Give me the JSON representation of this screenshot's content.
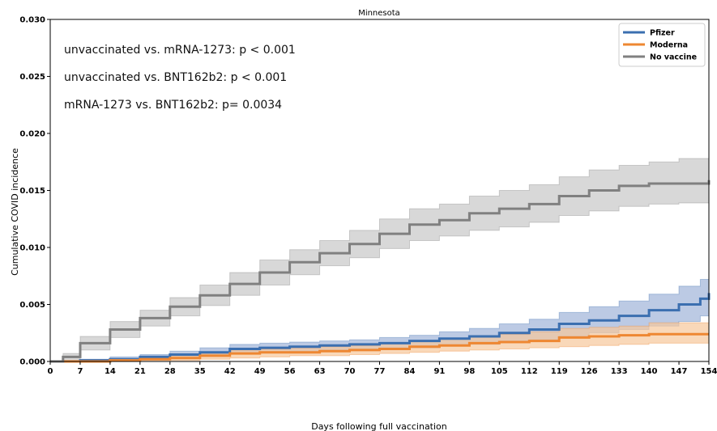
{
  "chart_data": {
    "type": "line",
    "title": "Minnesota",
    "xlabel": "Days following full vaccination",
    "ylabel": "Cumulative COVID incidence",
    "xlim": [
      0,
      154
    ],
    "ylim": [
      0,
      0.03
    ],
    "xticks": [
      0,
      7,
      14,
      21,
      28,
      35,
      42,
      49,
      56,
      63,
      70,
      77,
      84,
      91,
      98,
      105,
      112,
      119,
      126,
      133,
      140,
      147,
      154
    ],
    "yticks": [
      0.0,
      0.005,
      0.01,
      0.015,
      0.02,
      0.025,
      0.03
    ],
    "ytick_labels": [
      "0.000",
      "0.005",
      "0.010",
      "0.015",
      "0.020",
      "0.025",
      "0.030"
    ],
    "legend_position": "top-right",
    "grid": false,
    "annotations": [
      "unvaccinated vs. mRNA-1273: p < 0.001",
      "unvaccinated vs. BNT162b2: p < 0.001",
      "mRNA-1273 vs. BNT162b2: p= 0.0034"
    ],
    "series": [
      {
        "name": "Pfizer",
        "color": "#3b6fb0",
        "band_color": "#9fb3d9",
        "x": [
          0,
          7,
          14,
          21,
          28,
          35,
          42,
          49,
          56,
          63,
          70,
          77,
          84,
          91,
          98,
          105,
          112,
          119,
          126,
          133,
          140,
          147,
          152,
          154
        ],
        "y": [
          0,
          0.0001,
          0.0002,
          0.0004,
          0.0006,
          0.0008,
          0.0011,
          0.0012,
          0.0013,
          0.0014,
          0.0015,
          0.0016,
          0.0018,
          0.002,
          0.0022,
          0.0025,
          0.0028,
          0.0033,
          0.0036,
          0.004,
          0.0045,
          0.005,
          0.0055,
          0.006
        ],
        "lower": [
          0,
          0,
          0.0001,
          0.0002,
          0.0003,
          0.0005,
          0.0007,
          0.0008,
          0.0009,
          0.001,
          0.001,
          0.0011,
          0.0012,
          0.0014,
          0.0015,
          0.0017,
          0.0019,
          0.0022,
          0.0025,
          0.0028,
          0.0031,
          0.0035,
          0.004,
          0.0043
        ],
        "upper": [
          0,
          0.0002,
          0.0004,
          0.0006,
          0.0009,
          0.0012,
          0.0015,
          0.0016,
          0.0017,
          0.0018,
          0.0019,
          0.0021,
          0.0023,
          0.0026,
          0.0029,
          0.0033,
          0.0037,
          0.0043,
          0.0048,
          0.0053,
          0.0059,
          0.0066,
          0.0072,
          0.008
        ]
      },
      {
        "name": "Moderna",
        "color": "#ee8732",
        "band_color": "#f6c79b",
        "x": [
          0,
          7,
          14,
          21,
          28,
          35,
          42,
          49,
          56,
          63,
          70,
          77,
          84,
          91,
          98,
          105,
          112,
          119,
          126,
          133,
          140,
          147,
          154
        ],
        "y": [
          0,
          0,
          0.0001,
          0.0002,
          0.0003,
          0.0005,
          0.0007,
          0.0008,
          0.0008,
          0.0009,
          0.001,
          0.0011,
          0.0013,
          0.0014,
          0.0016,
          0.0017,
          0.0018,
          0.0021,
          0.0022,
          0.0023,
          0.0024,
          0.0024,
          0.0024
        ],
        "lower": [
          0,
          0,
          0,
          0.0001,
          0.0001,
          0.0002,
          0.0003,
          0.0004,
          0.0005,
          0.0005,
          0.0006,
          0.0007,
          0.0008,
          0.0009,
          0.001,
          0.0011,
          0.0012,
          0.0013,
          0.0014,
          0.0015,
          0.0016,
          0.0016,
          0.0016
        ],
        "upper": [
          0,
          0.0001,
          0.0002,
          0.0003,
          0.0005,
          0.0007,
          0.001,
          0.0011,
          0.0012,
          0.0013,
          0.0014,
          0.0016,
          0.0018,
          0.002,
          0.0022,
          0.0024,
          0.0026,
          0.0029,
          0.003,
          0.0031,
          0.0034,
          0.0034,
          0.0034
        ]
      },
      {
        "name": "No vaccine",
        "color": "#808080",
        "band_color": "#c8c8c8",
        "x": [
          0,
          3,
          7,
          14,
          21,
          28,
          35,
          42,
          49,
          56,
          63,
          70,
          77,
          84,
          91,
          98,
          105,
          112,
          119,
          126,
          133,
          140,
          147,
          154
        ],
        "y": [
          0,
          0.0004,
          0.0016,
          0.0028,
          0.0038,
          0.0048,
          0.0058,
          0.0068,
          0.0078,
          0.0087,
          0.0095,
          0.0103,
          0.0112,
          0.012,
          0.0124,
          0.013,
          0.0134,
          0.0138,
          0.0145,
          0.015,
          0.0154,
          0.0156,
          0.0156,
          0.0159
        ],
        "lower": [
          0,
          0.0001,
          0.001,
          0.0021,
          0.0031,
          0.004,
          0.0049,
          0.0058,
          0.0067,
          0.0076,
          0.0084,
          0.0091,
          0.0099,
          0.0106,
          0.011,
          0.0115,
          0.0118,
          0.0122,
          0.0128,
          0.0132,
          0.0136,
          0.0138,
          0.0139,
          0.014
        ],
        "upper": [
          0,
          0.0007,
          0.0022,
          0.0035,
          0.0045,
          0.0056,
          0.0067,
          0.0078,
          0.0089,
          0.0098,
          0.0106,
          0.0115,
          0.0125,
          0.0134,
          0.0138,
          0.0145,
          0.015,
          0.0155,
          0.0162,
          0.0168,
          0.0172,
          0.0175,
          0.0178,
          0.018
        ]
      }
    ]
  }
}
